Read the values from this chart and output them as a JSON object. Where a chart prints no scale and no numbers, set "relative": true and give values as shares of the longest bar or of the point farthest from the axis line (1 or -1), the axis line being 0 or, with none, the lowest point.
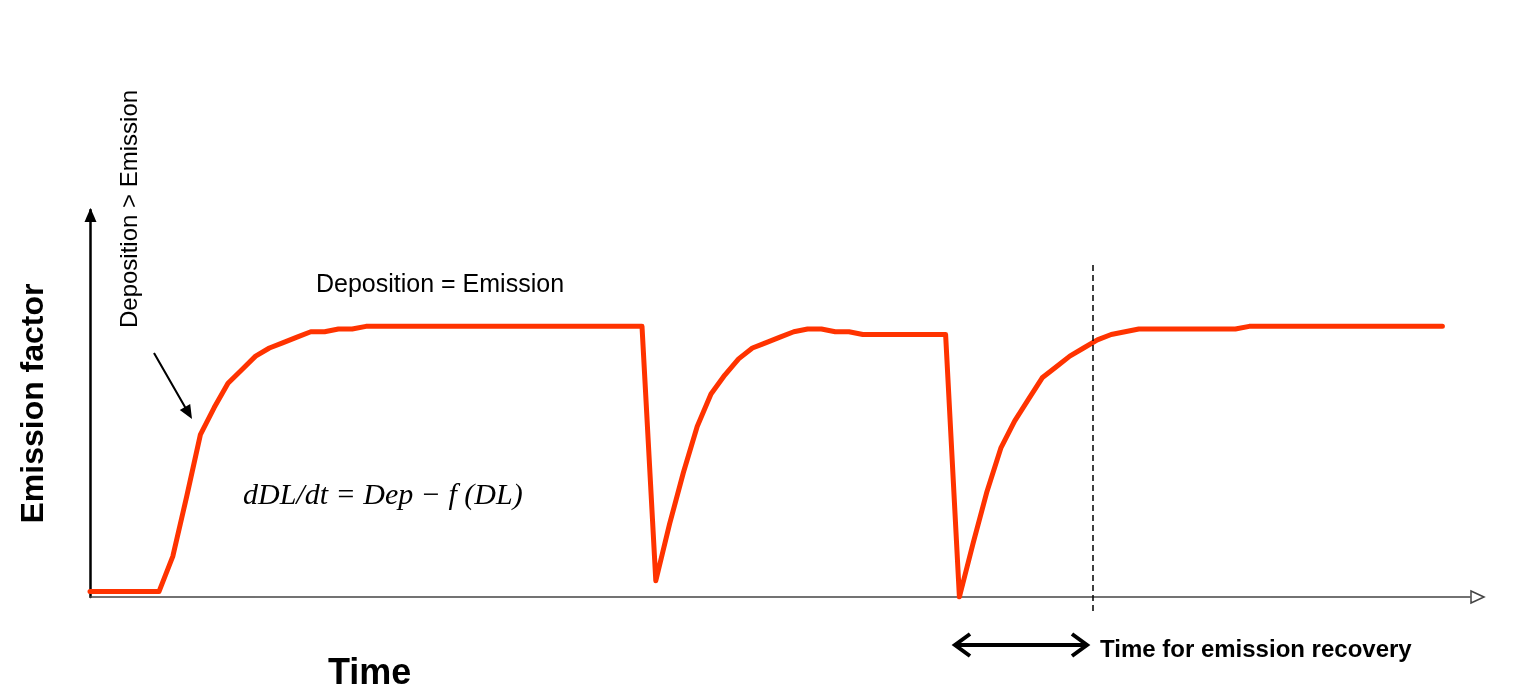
{
  "chart_data": {
    "type": "line",
    "relative": true,
    "xlabel": "Time",
    "ylabel": "Emission factor",
    "categories": [
      null,
      null,
      null,
      null,
      null,
      null,
      null,
      null,
      null,
      null,
      null,
      null,
      null,
      null,
      null,
      null,
      null,
      null,
      null,
      null,
      null,
      null,
      null,
      null,
      null,
      null,
      null,
      null,
      null,
      null,
      null,
      null,
      null,
      null,
      null,
      null,
      null,
      null,
      null,
      null,
      null,
      null,
      null,
      null,
      null,
      null,
      null,
      null,
      null,
      null,
      null,
      null,
      null,
      null,
      null,
      null,
      null,
      null,
      null,
      null,
      null,
      null,
      null,
      null,
      null,
      null,
      null,
      null,
      null,
      null,
      null,
      null,
      null,
      null,
      null,
      null,
      null,
      null,
      null,
      null,
      null,
      null,
      null,
      null,
      null,
      null,
      null,
      null,
      null,
      null,
      null,
      null,
      null,
      null,
      null,
      null,
      null,
      null,
      null,
      null,
      null
    ],
    "grid": false,
    "marker": "none",
    "line_style": "solid",
    "series": [
      {
        "color": "#ff3300",
        "values": [
          0.02,
          0.02,
          0.02,
          0.02,
          0.02,
          0.02,
          0.15,
          0.37,
          0.6,
          0.7,
          0.79,
          0.84,
          0.89,
          0.92,
          0.94,
          0.96,
          0.98,
          0.98,
          0.99,
          0.99,
          1,
          1,
          1,
          1,
          1,
          1,
          1,
          1,
          1,
          1,
          1,
          1,
          1,
          1,
          1,
          1,
          1,
          1,
          1,
          1,
          1,
          0.06,
          0.27,
          0.46,
          0.63,
          0.75,
          0.82,
          0.88,
          0.92,
          0.94,
          0.96,
          0.98,
          0.99,
          0.99,
          0.98,
          0.98,
          0.97,
          0.97,
          0.97,
          0.97,
          0.97,
          0.97,
          0.97,
          0,
          0.2,
          0.39,
          0.55,
          0.65,
          0.73,
          0.81,
          0.85,
          0.89,
          0.92,
          0.95,
          0.97,
          0.98,
          0.99,
          0.99,
          0.99,
          0.99,
          0.99,
          0.99,
          0.99,
          0.99,
          1,
          1,
          1,
          1,
          1,
          1,
          1,
          1,
          1,
          1,
          1,
          1,
          1,
          1,
          1,
          null,
          null
        ]
      }
    ],
    "annotations": [
      "Deposition > Emission",
      "Deposition = Emission",
      "dDL/dt = Dep − f (DL)",
      "Time for emission recovery"
    ]
  }
}
